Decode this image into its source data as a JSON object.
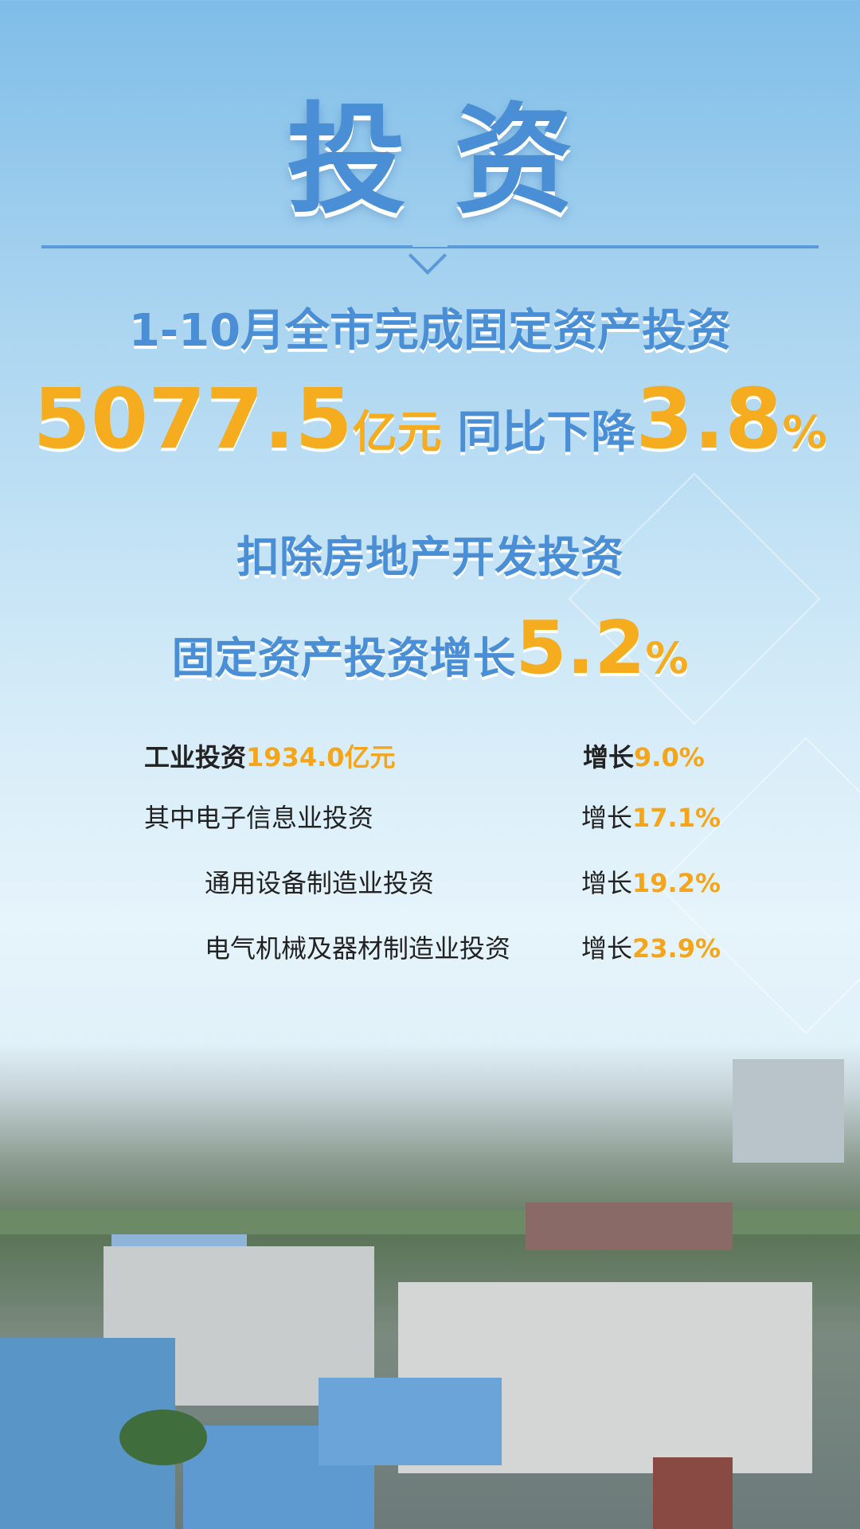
{
  "title": "投资",
  "headline": {
    "line1": "1-10月全市完成固定资产投资",
    "amount": "5077.5",
    "amount_unit": "亿元",
    "change_label": "同比下降",
    "change_value": "3.8",
    "percent": "%"
  },
  "excl_real_estate": {
    "line1": "扣除房地产开发投资",
    "line2_label": "固定资产投资增长",
    "value": "5.2",
    "percent": "%"
  },
  "details": [
    {
      "label": "工业投资",
      "amount": "1934.0亿元",
      "growth_label": "增长",
      "growth": "9.0%"
    },
    {
      "label": "其中电子信息业投资",
      "growth_label": "增长",
      "growth": "17.1%"
    },
    {
      "label": "通用设备制造业投资",
      "growth_label": "增长",
      "growth": "19.2%"
    },
    {
      "label": "电气机械及器材制造业投资",
      "growth_label": "增长",
      "growth": "23.9%"
    }
  ],
  "colors": {
    "accent_blue": "#4a8fd6",
    "accent_orange": "#f5ac1e"
  }
}
